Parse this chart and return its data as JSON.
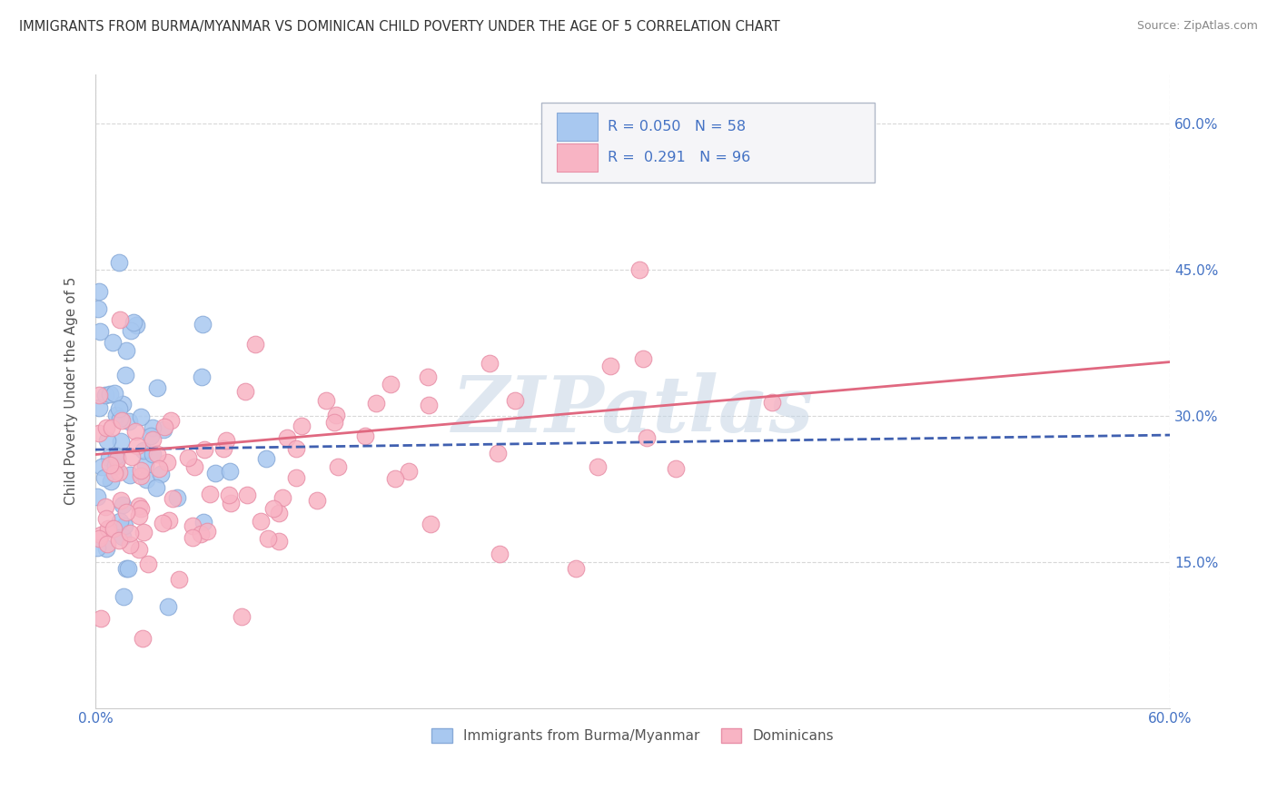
{
  "title": "IMMIGRANTS FROM BURMA/MYANMAR VS DOMINICAN CHILD POVERTY UNDER THE AGE OF 5 CORRELATION CHART",
  "source": "Source: ZipAtlas.com",
  "ylabel": "Child Poverty Under the Age of 5",
  "xlim": [
    0.0,
    0.6
  ],
  "ylim": [
    0.0,
    0.65
  ],
  "yticks": [
    0.15,
    0.3,
    0.45,
    0.6
  ],
  "background_color": "#ffffff",
  "grid_color": "#d8d8d8",
  "watermark": "ZIPatlas",
  "burma_color_fill": "#a8c8f0",
  "burma_color_edge": "#88aad8",
  "dom_color_fill": "#f8b4c4",
  "dom_color_edge": "#e890a8",
  "burma_line_color": "#4060b0",
  "dom_line_color": "#e06880",
  "legend_text_color": "#4472c4",
  "legend_border_color": "#b0b8c8",
  "legend_bg": "#f5f5f8",
  "tick_color": "#4472c4",
  "ylabel_color": "#555555",
  "title_color": "#333333",
  "source_color": "#888888",
  "burma_R": "0.050",
  "burma_N": "58",
  "dom_R": "0.291",
  "dom_N": "96",
  "burma_seed": 7,
  "dom_seed": 13,
  "burma_trend_y0": 0.265,
  "burma_trend_y1": 0.28,
  "dom_trend_y0": 0.26,
  "dom_trend_y1": 0.355
}
